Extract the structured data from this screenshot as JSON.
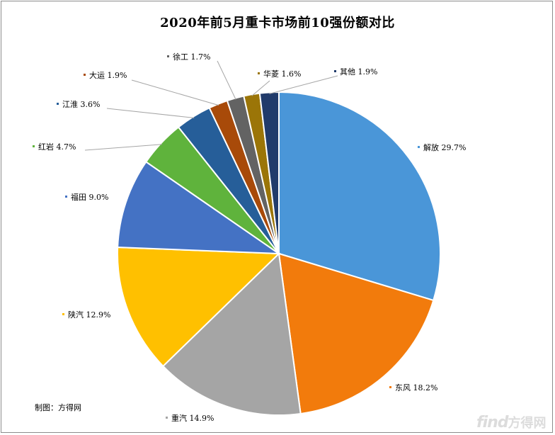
{
  "chart_data": {
    "type": "pie",
    "title": "2020年前5月重卡市场前10强份额对比",
    "slices": [
      {
        "label": "解放",
        "value": 29.7,
        "value_label": "29.7%",
        "color": "#4a96d8"
      },
      {
        "label": "东风",
        "value": 18.2,
        "value_label": "18.2%",
        "color": "#f27b0c"
      },
      {
        "label": "重汽",
        "value": 14.9,
        "value_label": "14.9%",
        "color": "#a5a5a5"
      },
      {
        "label": "陕汽",
        "value": 12.9,
        "value_label": "12.9%",
        "color": "#ffc000"
      },
      {
        "label": "福田",
        "value": 9.0,
        "value_label": "9.0%",
        "color": "#4472c4"
      },
      {
        "label": "红岩",
        "value": 4.7,
        "value_label": "4.7%",
        "color": "#5fb33c"
      },
      {
        "label": "江淮",
        "value": 3.6,
        "value_label": "3.6%",
        "color": "#265e99"
      },
      {
        "label": "大运",
        "value": 1.9,
        "value_label": "1.9%",
        "color": "#a84a09"
      },
      {
        "label": "徐工",
        "value": 1.7,
        "value_label": "1.7%",
        "color": "#636363"
      },
      {
        "label": "华菱",
        "value": 1.6,
        "value_label": "1.6%",
        "color": "#9b7508"
      },
      {
        "label": "其他",
        "value": 1.9,
        "value_label": "1.9%",
        "color": "#213b6b"
      }
    ]
  },
  "credit": "制图：方得网",
  "watermark": {
    "latin": "find",
    "cn": "方得网"
  }
}
